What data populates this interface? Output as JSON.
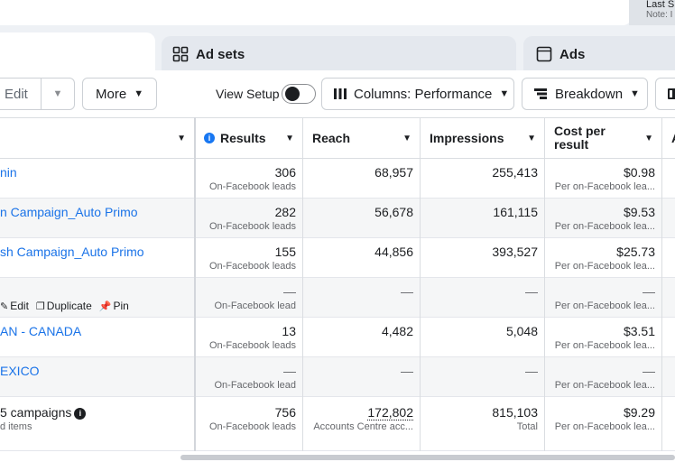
{
  "header": {
    "last_line": "Last S",
    "note_line": "Note: I"
  },
  "tabs": {
    "adsets": "Ad sets",
    "ads": "Ads"
  },
  "toolbar": {
    "edit": "Edit",
    "more": "More",
    "view_setup": "View Setup",
    "columns": "Columns: Performance",
    "breakdown": "Breakdown"
  },
  "columns": {
    "results": "Results",
    "reach": "Reach",
    "impressions": "Impressions",
    "cost_line1": "Cost per",
    "cost_line2": "result",
    "more": "A"
  },
  "rows": [
    {
      "name": "nin",
      "results": "306",
      "results_sub": "On-Facebook leads",
      "reach": "68,957",
      "impressions": "255,413",
      "cost": "$0.98",
      "cost_sub": "Per on-Facebook lea..."
    },
    {
      "name": "n Campaign_Auto Primo",
      "results": "282",
      "results_sub": "On-Facebook leads",
      "reach": "56,678",
      "impressions": "161,115",
      "cost": "$9.53",
      "cost_sub": "Per on-Facebook lea..."
    },
    {
      "name": "sh Campaign_Auto Primo",
      "results": "155",
      "results_sub": "On-Facebook leads",
      "reach": "44,856",
      "impressions": "393,527",
      "cost": "$25.73",
      "cost_sub": "Per on-Facebook lea..."
    },
    {
      "name": "",
      "results": "—",
      "results_sub": "On-Facebook lead",
      "reach": "—",
      "impressions": "—",
      "cost": "—",
      "cost_sub": "Per on-Facebook lea..."
    },
    {
      "name": "AN - CANADA",
      "results": "13",
      "results_sub": "On-Facebook leads",
      "reach": "4,482",
      "impressions": "5,048",
      "cost": "$3.51",
      "cost_sub": "Per on-Facebook lea..."
    },
    {
      "name": "EXICO",
      "results": "—",
      "results_sub": "On-Facebook lead",
      "reach": "—",
      "impressions": "—",
      "cost": "—",
      "cost_sub": "Per on-Facebook lea..."
    }
  ],
  "row_actions": {
    "edit": "Edit",
    "duplicate": "Duplicate",
    "pin": "Pin"
  },
  "total": {
    "name": "5 campaigns",
    "sub": "d items",
    "results": "756",
    "results_sub": "On-Facebook leads",
    "reach": "172,802",
    "reach_sub": "Accounts Centre acc...",
    "impressions": "815,103",
    "impressions_sub": "Total",
    "cost": "$9.29",
    "cost_sub": "Per on-Facebook lea..."
  }
}
